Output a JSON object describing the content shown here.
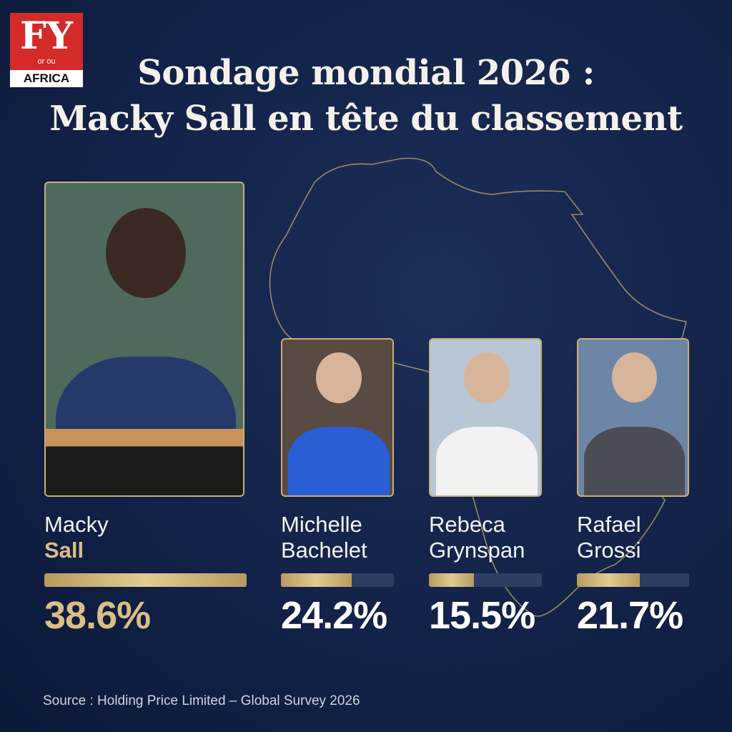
{
  "logo": {
    "initials": "FY",
    "small": "or ou",
    "region": "AFRICA"
  },
  "header": {
    "title_line1": "Sondage mondial 2026 :",
    "title_line2": "Macky Sall en tête du classement"
  },
  "candidates": [
    {
      "first": "Macky",
      "last": "Sall",
      "value": 38.6,
      "value_label": "38.6%"
    },
    {
      "first": "Michelle",
      "last": "Bachelet",
      "value": 24.2,
      "value_label": "24.2%"
    },
    {
      "first": "Rebeca",
      "last": "Grynspan",
      "value": 15.5,
      "value_label": "15.5%"
    },
    {
      "first": "Rafael",
      "last": "Grossi",
      "value": 21.7,
      "value_label": "21.7%"
    }
  ],
  "footer": {
    "source": "Source : Holding Price Limited – Global Survey 2026"
  }
}
